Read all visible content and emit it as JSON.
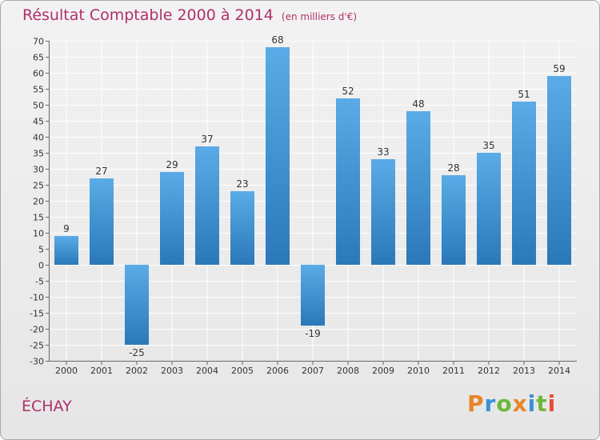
{
  "chart_data": {
    "type": "bar",
    "title": "Résultat Comptable 2000 à 2014",
    "subtitle": "(en milliers d'€)",
    "categories": [
      "2000",
      "2001",
      "2002",
      "2003",
      "2004",
      "2005",
      "2006",
      "2007",
      "2008",
      "2009",
      "2010",
      "2011",
      "2012",
      "2013",
      "2014"
    ],
    "values": [
      9,
      27,
      -25,
      29,
      37,
      23,
      68,
      -19,
      52,
      33,
      48,
      28,
      35,
      51,
      59
    ],
    "ylim": [
      -30,
      70
    ],
    "yticks": [
      70,
      65,
      60,
      55,
      50,
      45,
      40,
      35,
      30,
      25,
      20,
      15,
      10,
      5,
      0,
      -5,
      -10,
      -15,
      -20,
      -25,
      -30
    ],
    "xlabel": "",
    "ylabel": "",
    "grid": true
  },
  "place_name": "ÉCHAY",
  "logo": {
    "letters": [
      "P",
      "r",
      "o",
      "x",
      "i",
      "t",
      "i"
    ]
  },
  "colors": {
    "bar_top": "#5aabe8",
    "bar_bottom": "#2a78b8",
    "title": "#b0306a",
    "logo": [
      "#e8842a",
      "#3a8fd8",
      "#6cb83a",
      "#e8842a",
      "#3a8fd8",
      "#6cb83a",
      "#e84a3a"
    ]
  }
}
